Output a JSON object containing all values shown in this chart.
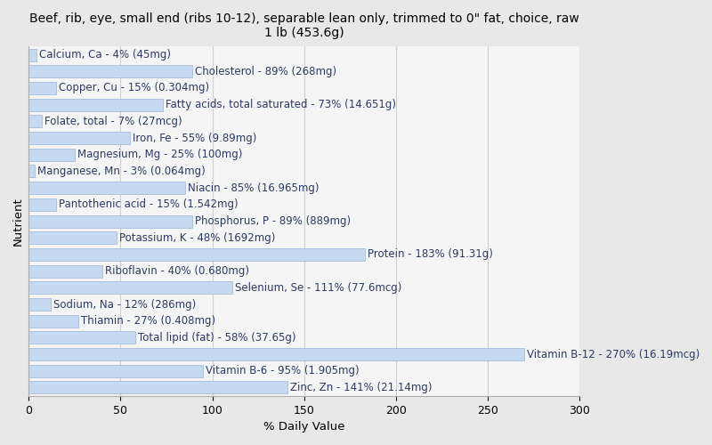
{
  "title": "Beef, rib, eye, small end (ribs 10-12), separable lean only, trimmed to 0\" fat, choice, raw\n1 lb (453.6g)",
  "xlabel": "% Daily Value",
  "ylabel": "Nutrient",
  "nutrients": [
    "Calcium, Ca - 4% (45mg)",
    "Cholesterol - 89% (268mg)",
    "Copper, Cu - 15% (0.304mg)",
    "Fatty acids, total saturated - 73% (14.651g)",
    "Folate, total - 7% (27mcg)",
    "Iron, Fe - 55% (9.89mg)",
    "Magnesium, Mg - 25% (100mg)",
    "Manganese, Mn - 3% (0.064mg)",
    "Niacin - 85% (16.965mg)",
    "Pantothenic acid - 15% (1.542mg)",
    "Phosphorus, P - 89% (889mg)",
    "Potassium, K - 48% (1692mg)",
    "Protein - 183% (91.31g)",
    "Riboflavin - 40% (0.680mg)",
    "Selenium, Se - 111% (77.6mcg)",
    "Sodium, Na - 12% (286mg)",
    "Thiamin - 27% (0.408mg)",
    "Total lipid (fat) - 58% (37.65g)",
    "Vitamin B-12 - 270% (16.19mcg)",
    "Vitamin B-6 - 95% (1.905mg)",
    "Zinc, Zn - 141% (21.14mg)"
  ],
  "values": [
    4,
    89,
    15,
    73,
    7,
    55,
    25,
    3,
    85,
    15,
    89,
    48,
    183,
    40,
    111,
    12,
    27,
    58,
    270,
    95,
    141
  ],
  "bar_color": "#c5d9f1",
  "bar_edge_color": "#9ab4d8",
  "background_color": "#e8e8e8",
  "plot_bg_color": "#f5f5f5",
  "text_color": "#2a3a6a",
  "grid_color": "#d0d0d0",
  "xlim": [
    0,
    300
  ],
  "xticks": [
    0,
    50,
    100,
    150,
    200,
    250,
    300
  ],
  "title_fontsize": 10,
  "label_fontsize": 8.5,
  "tick_fontsize": 9,
  "bar_height": 0.75
}
